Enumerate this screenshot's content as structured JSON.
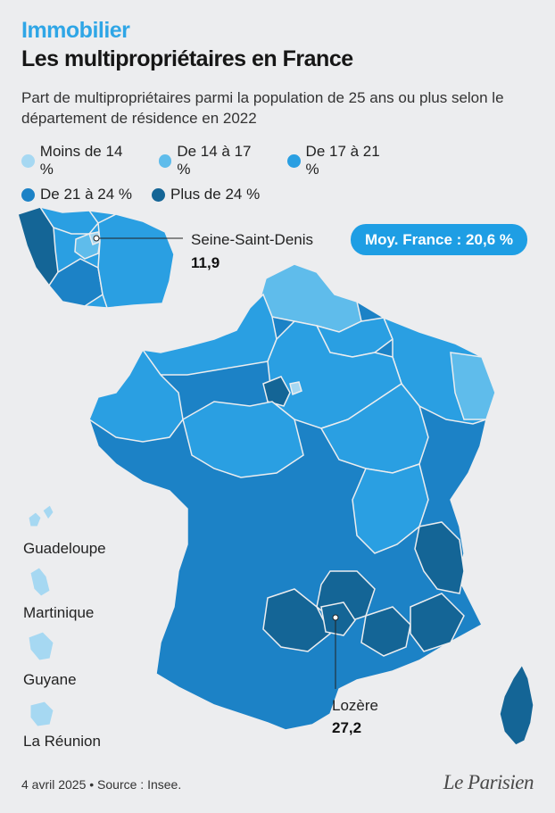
{
  "header": {
    "kicker": "Immobilier",
    "title": "Les multipropriétaires en France",
    "subtitle": "Part de multipropriétaires parmi la population de 25 ans ou plus selon le département de résidence en 2022"
  },
  "legend": [
    {
      "label": "Moins de 14 %",
      "color": "#a6d8f2"
    },
    {
      "label": "De 14 à 17 %",
      "color": "#5fbceb"
    },
    {
      "label": "De 17 à 21 %",
      "color": "#2a9fe2"
    },
    {
      "label": "De 21 à 24 %",
      "color": "#1c82c6"
    },
    {
      "label": "Plus de 24 %",
      "color": "#146596"
    }
  ],
  "badge": "Moy. France : 20,6 %",
  "callouts": {
    "seine_saint_denis": {
      "name": "Seine-Saint-Denis",
      "value": "11,9"
    },
    "lozere": {
      "name": "Lozère",
      "value": "27,2"
    }
  },
  "overseas": [
    "Guadeloupe",
    "Martinique",
    "Guyane",
    "La Réunion"
  ],
  "footer": "4 avril 2025 • Source : Insee.",
  "logo": "Le Parisien"
}
